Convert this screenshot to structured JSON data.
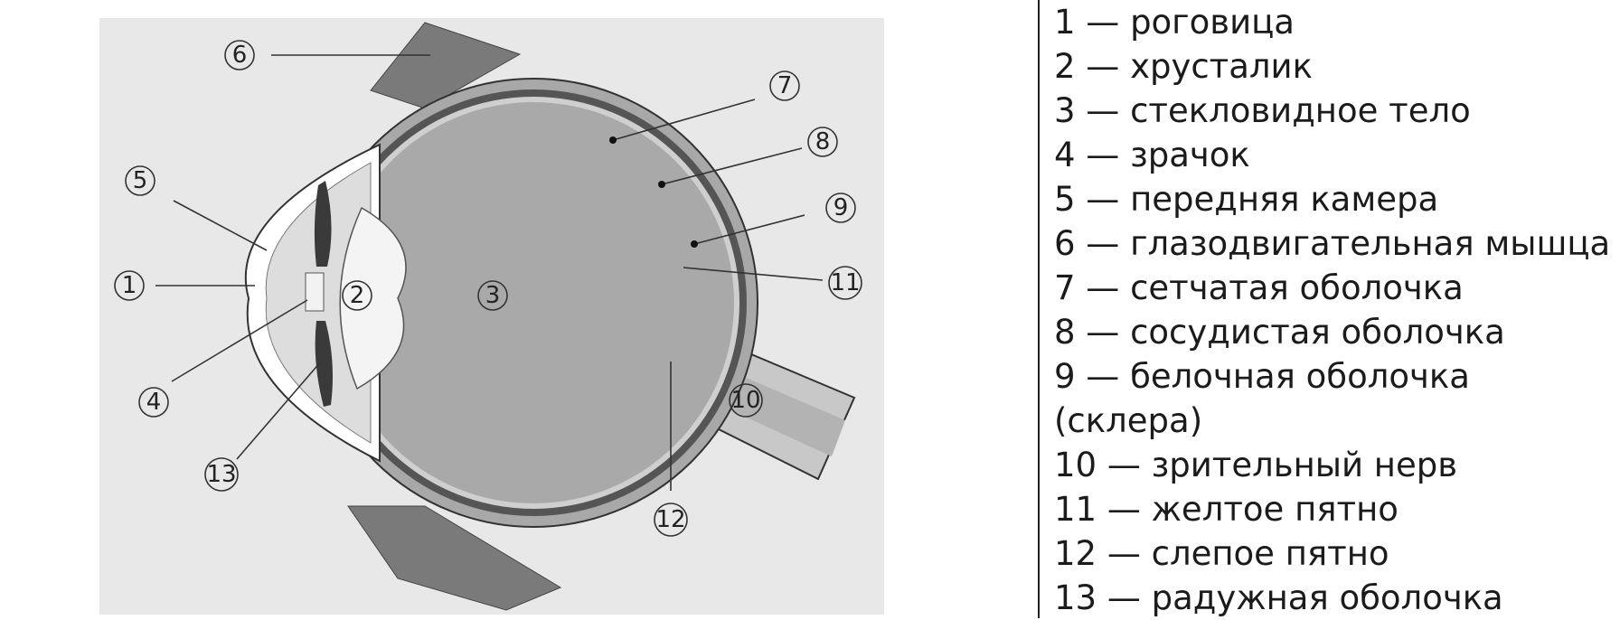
{
  "diagram": {
    "labels": [
      "1",
      "2",
      "3",
      "4",
      "5",
      "6",
      "7",
      "8",
      "9",
      "10",
      "11",
      "12",
      "13"
    ]
  },
  "legend": {
    "lines": [
      "1 — роговица",
      "2 — хрусталик",
      "3 — стекловидное тело",
      "4 — зрачок",
      "5 — передняя камера",
      "6 — глазодвигательная мышца",
      "7 — сетчатая оболочка",
      "8 — сосудистая оболочка",
      "9 — белочная оболочка",
      "(склера)",
      "10 — зрительный нерв",
      "11 — желтое пятно",
      "12 — слепое пятно",
      "13 — радужная оболочка"
    ]
  }
}
